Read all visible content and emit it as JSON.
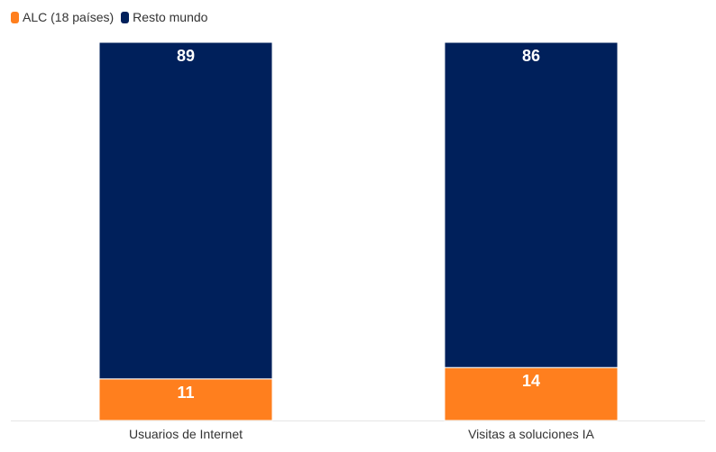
{
  "chart_data": {
    "type": "bar",
    "stacked": true,
    "categories": [
      "Usuarios de Internet",
      "Visitas a soluciones IA"
    ],
    "series": [
      {
        "name": "ALC (18 países)",
        "values": [
          11,
          14
        ],
        "color": "#FF7F1E"
      },
      {
        "name": "Resto mundo",
        "values": [
          89,
          86
        ],
        "color": "#00205B"
      }
    ],
    "ylim": [
      0,
      100
    ],
    "grid": false,
    "legend_position": "top-left"
  }
}
